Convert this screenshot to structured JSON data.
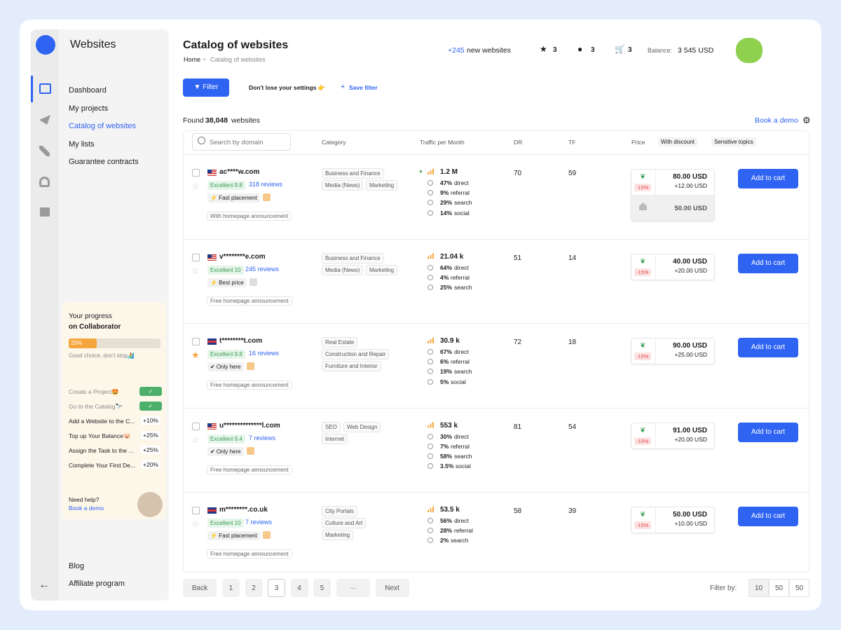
{
  "sidebar": {
    "title": "Websites",
    "nav": [
      "Dashboard",
      "My projects",
      "Catalog of websites",
      "My lists",
      "Guarantee contracts"
    ],
    "progress": {
      "title": "Your progress",
      "subtitle": "on Collaborator",
      "percent": "25%",
      "note": "Good choice, don't stop🏄",
      "tasks": [
        {
          "label": "Create a Project🤩",
          "done": true
        },
        {
          "label": "Go to the Catalog🔭",
          "done": true
        },
        {
          "label": "Add a Website to the C...",
          "badge": "+10%"
        },
        {
          "label": "Top up Your Balance🐷",
          "badge": "+25%"
        },
        {
          "label": "Assign the Task to the ...",
          "badge": "+25%"
        },
        {
          "label": "Complete Your First De...",
          "badge": "+20%"
        }
      ],
      "help": "Need help?",
      "help_link": "Book a demo"
    },
    "footer": [
      "Blog",
      "Affiliate program"
    ]
  },
  "header": {
    "title": "Catalog of websites",
    "breadcrumb": [
      "Home",
      "Catalog of websites"
    ],
    "new_count": "+245",
    "new_label": "new websites",
    "favorites": "3",
    "messages": "3",
    "cart": "3",
    "balance_label": "Balance:",
    "balance": "3 545 USD"
  },
  "toolbar": {
    "filter": "Filter",
    "hint": "Don't lose your settings 👉",
    "save": "Save filter",
    "found": "Found",
    "found_count": "38,048",
    "found_unit": "websites",
    "demo": "Book a demo"
  },
  "table": {
    "search": "Search by domain",
    "columns": [
      "Category",
      "Traffic per Month",
      "DR",
      "TF",
      "Price"
    ],
    "chips": [
      "With discount",
      "Sensitive topics"
    ],
    "rows": [
      {
        "flag": "US",
        "domain": "ac****w.com",
        "rating": "Excellent 9.8",
        "reviews": "318 reviews",
        "tag": "Fast placement",
        "announcement": "With homepage announcement",
        "categories": [
          "Business and Finance",
          "Media (News)",
          "Marketing"
        ],
        "traffic": "1.2 M",
        "trend": "up",
        "stats": [
          [
            "47%",
            "direct"
          ],
          [
            "9%",
            "referral"
          ],
          [
            "29%",
            "search"
          ],
          [
            "14%",
            "social"
          ]
        ],
        "dr": 70,
        "tf": 59,
        "discount": "-15%",
        "price": "80.00 USD",
        "extra": "+12.00 USD",
        "homepage_price": "50.00 USD",
        "button": "Add to cart"
      },
      {
        "flag": "US",
        "domain": "v********e.com",
        "rating": "Excellent 10",
        "reviews": "245 reviews",
        "tag": "Best price",
        "announcement": "Free homepage announcement",
        "categories": [
          "Business and Finance",
          "Media (News)",
          "Marketing"
        ],
        "traffic": "21.04 k",
        "stats": [
          [
            "64%",
            "direct"
          ],
          [
            "4%",
            "referral"
          ],
          [
            "25%",
            "search"
          ]
        ],
        "dr": 51,
        "tf": 14,
        "discount": "-15%",
        "price": "40.00 USD",
        "extra": "+20.00 USD",
        "button": "Add to cart"
      },
      {
        "flag": "GB",
        "starred": true,
        "domain": "t********t.com",
        "rating": "Excellent 9.8",
        "reviews": "16 reviews",
        "tag": "Only here",
        "announcement": "Free homepage announcement",
        "categories": [
          "Real Estate",
          "Construction and Repair",
          "Furniture and Interior"
        ],
        "traffic": "30.9 k",
        "stats": [
          [
            "67%",
            "direct"
          ],
          [
            "6%",
            "referral"
          ],
          [
            "19%",
            "search"
          ],
          [
            "5%",
            "social"
          ]
        ],
        "dr": 72,
        "tf": 18,
        "discount": "-15%",
        "price": "90.00 USD",
        "extra": "+25.00 USD",
        "button": "Add to cart"
      },
      {
        "flag": "US",
        "domain": "u**************l.com",
        "rating": "Excellent 9.4",
        "reviews": "7 reviews",
        "tag": "Only here",
        "announcement": "Free homepage announcement",
        "categories": [
          "SEO",
          "Web Design",
          "Internet"
        ],
        "traffic": "553 k",
        "stats": [
          [
            "30%",
            "direct"
          ],
          [
            "7%",
            "referral"
          ],
          [
            "58%",
            "search"
          ],
          [
            "3.5%",
            "social"
          ]
        ],
        "dr": 81,
        "tf": 54,
        "discount": "-15%",
        "price": "91.00 USD",
        "extra": "+20.00 USD",
        "button": "Add to cart"
      },
      {
        "flag": "GB",
        "domain": "m********.co.uk",
        "rating": "Excellent 10",
        "reviews": "7 reviews",
        "tag": "Fast placement",
        "announcement": "Free homepage announcement",
        "categories": [
          "City Portals",
          "Culture and Art",
          "Marketing"
        ],
        "traffic": "53.5 k",
        "stats": [
          [
            "56%",
            "direct"
          ],
          [
            "28%",
            "referral"
          ],
          [
            "2%",
            "search"
          ]
        ],
        "dr": 58,
        "tf": 39,
        "discount": "-15%",
        "price": "50.00 USD",
        "extra": "+10.00 USD",
        "button": "Add to cart"
      }
    ]
  },
  "pagination": {
    "pages": [
      "Back",
      "1",
      "2",
      "3",
      "4",
      "5",
      "···",
      "Next"
    ],
    "current": "3",
    "filter_label": "Filter by:",
    "filter_options": [
      "10",
      "50",
      "50"
    ]
  }
}
